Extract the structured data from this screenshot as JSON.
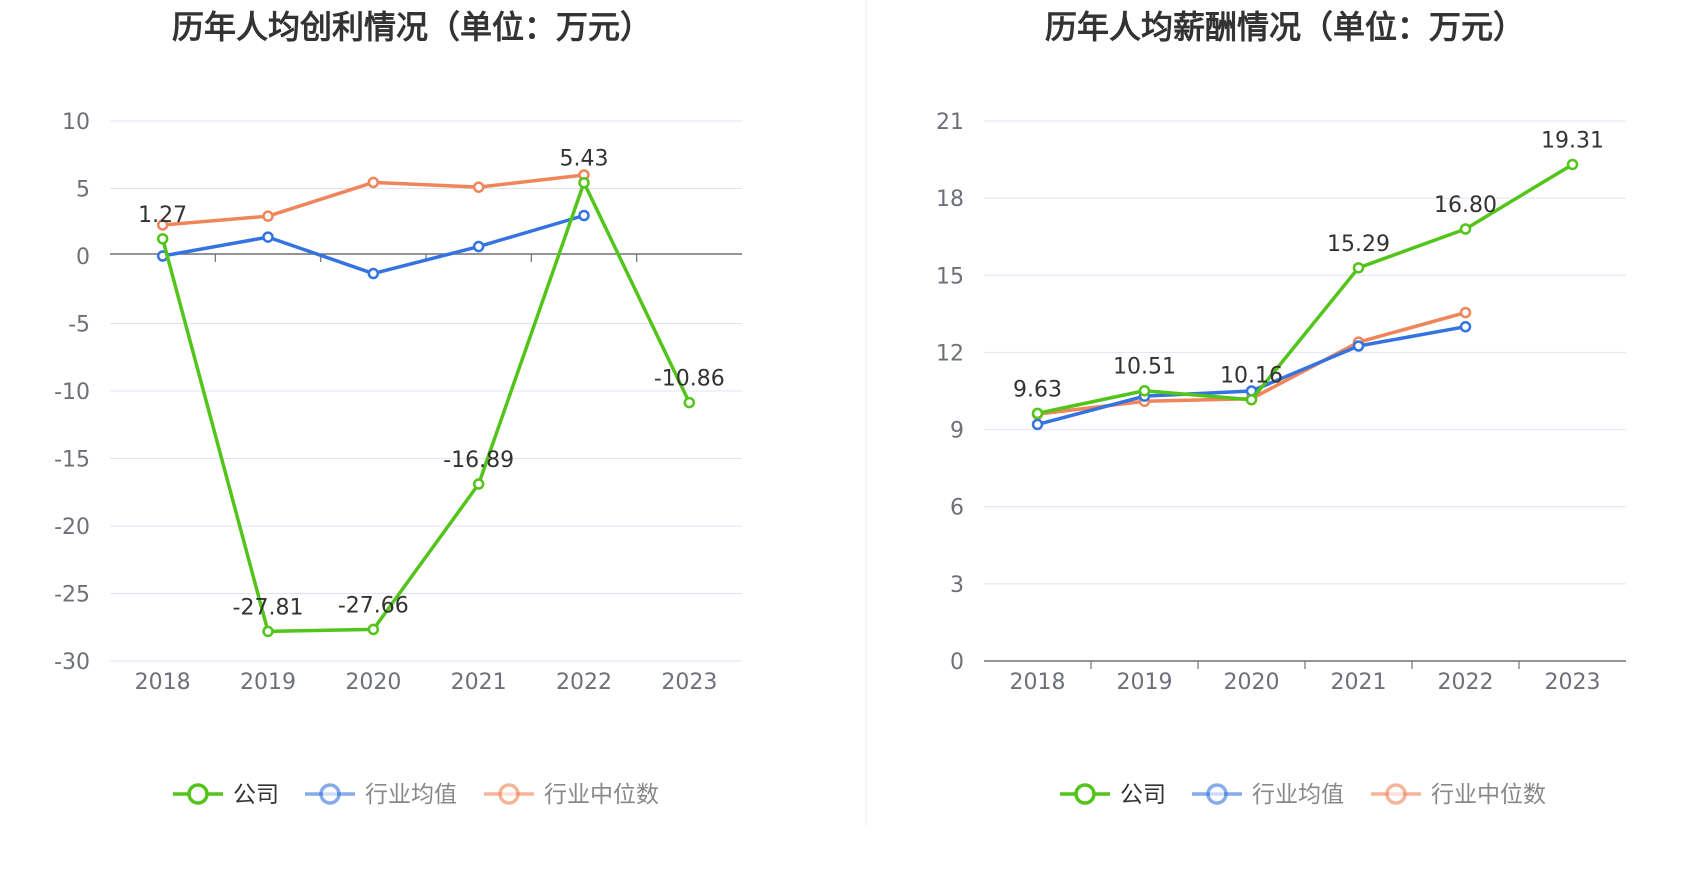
{
  "colors": {
    "company": "#52c41a",
    "industry_avg": "#3574e0",
    "industry_median": "#f0855a",
    "grid": "#dfe4f2",
    "axis": "#6e7079",
    "divider": "#eeeeee",
    "legend_active_text": "#333333",
    "legend_inactive_text": "#888888"
  },
  "chart_data": [
    {
      "type": "line",
      "title": "历年人均创利情况（单位：万元）",
      "categories": [
        "2018",
        "2019",
        "2020",
        "2021",
        "2022",
        "2023"
      ],
      "ylim": [
        -30,
        10
      ],
      "yticks": [
        10,
        5,
        0,
        -5,
        -10,
        -15,
        -20,
        -25,
        -30
      ],
      "ytick_labels": [
        "10",
        "5",
        "0",
        "-5",
        "-10",
        "-15",
        "-20",
        "-25",
        "-30"
      ],
      "series": [
        {
          "name": "公司",
          "values": [
            1.27,
            -27.81,
            -27.66,
            -16.89,
            5.43,
            -10.86
          ],
          "labels": [
            "1.27",
            "-27.81",
            "-27.66",
            "-16.89",
            "5.43",
            "-10.86"
          ]
        },
        {
          "name": "行业均值",
          "values": [
            0.0,
            1.4,
            -1.3,
            0.7,
            3.0,
            null
          ]
        },
        {
          "name": "行业中位数",
          "values": [
            2.3,
            2.95,
            5.45,
            5.1,
            6.0,
            null
          ]
        }
      ],
      "legend": [
        "公司",
        "行业均值",
        "行业中位数"
      ]
    },
    {
      "type": "line",
      "title": "历年人均薪酬情况（单位：万元）",
      "categories": [
        "2018",
        "2019",
        "2020",
        "2021",
        "2022",
        "2023"
      ],
      "ylim": [
        0,
        21
      ],
      "yticks": [
        21,
        18,
        15,
        12,
        9,
        6,
        3,
        0
      ],
      "ytick_labels": [
        "21",
        "18",
        "15",
        "12",
        "9",
        "6",
        "3",
        "0"
      ],
      "series": [
        {
          "name": "公司",
          "values": [
            9.63,
            10.51,
            10.16,
            15.29,
            16.8,
            19.31
          ],
          "labels": [
            "9.63",
            "10.51",
            "10.16",
            "15.29",
            "16.80",
            "19.31"
          ]
        },
        {
          "name": "行业均值",
          "values": [
            9.2,
            10.3,
            10.5,
            12.25,
            13.0,
            null
          ]
        },
        {
          "name": "行业中位数",
          "values": [
            9.6,
            10.1,
            10.2,
            12.4,
            13.55,
            null
          ]
        }
      ],
      "legend": [
        "公司",
        "行业均值",
        "行业中位数"
      ]
    }
  ]
}
